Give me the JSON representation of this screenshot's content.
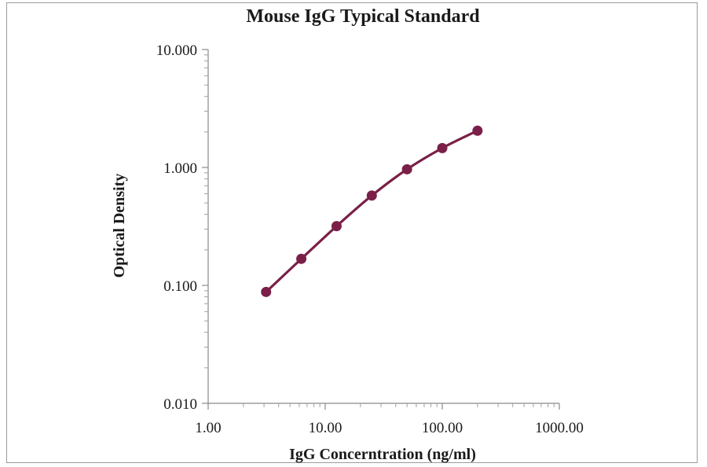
{
  "chart_data": {
    "type": "line",
    "title": "Mouse IgG Typical Standard",
    "xlabel": "IgG Concerntration (ng/ml)",
    "ylabel": "Optical Density",
    "x_scale": "log",
    "y_scale": "log",
    "xlim": [
      1,
      1000
    ],
    "ylim": [
      0.01,
      10
    ],
    "x_ticks": [
      1,
      10,
      100,
      1000
    ],
    "x_tick_labels": [
      "1.00",
      "10.00",
      "100.00",
      "1000.00"
    ],
    "y_ticks": [
      0.01,
      0.1,
      1,
      10
    ],
    "y_tick_labels": [
      "0.010",
      "0.100",
      "1.000",
      "10.000"
    ],
    "grid": false,
    "legend": "none",
    "series": [
      {
        "color": "#7a2048",
        "x": [
          3.125,
          6.25,
          12.5,
          25,
          50,
          100,
          200
        ],
        "y": [
          0.088,
          0.168,
          0.318,
          0.578,
          0.965,
          1.46,
          2.05
        ]
      }
    ]
  }
}
